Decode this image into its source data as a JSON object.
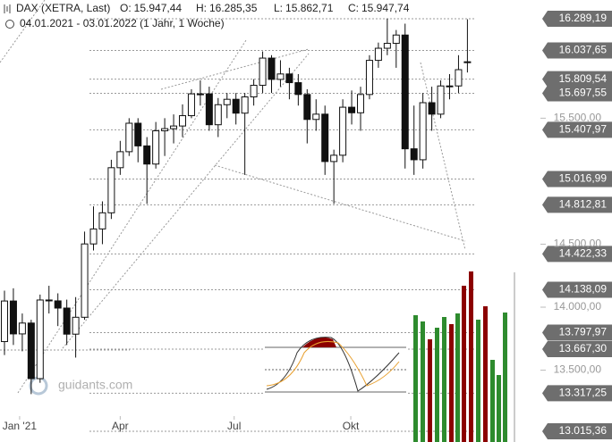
{
  "chart_data": {
    "type": "candlestick",
    "title": "DAX (XETRA, Last)",
    "ohlc_header": [
      {
        "label": "O:",
        "value": "15.947,44"
      },
      {
        "label": "H:",
        "value": "16.285,35"
      },
      {
        "label": "L:",
        "value": "15.862,71"
      },
      {
        "label": "C:",
        "value": "15.947,74"
      }
    ],
    "subtitle": "04.01.2021 - 03.01.2022 (1 Jahr, 1 Woche)",
    "watermark": "guidants.com",
    "open": [
      13727,
      14049,
      13788,
      13874,
      13433,
      14057,
      14050,
      13993,
      13786,
      13920,
      14502,
      14621,
      14749,
      15107,
      15234,
      15460,
      15280,
      15136,
      15400,
      15417,
      15438,
      15520,
      15693,
      15693,
      15448,
      15607,
      15650,
      15540,
      15669,
      15761,
      15977,
      15808,
      15851,
      15782,
      15688,
      15490,
      15532,
      15156,
      15206,
      15587,
      15543,
      15688,
      15959,
      16055,
      16094,
      16160,
      15257,
      15170,
      15623,
      15532,
      15756,
      15756,
      15947.44
    ],
    "high": [
      14131,
      14150,
      13950,
      13900,
      14100,
      14170,
      14110,
      14060,
      14080,
      14600,
      14800,
      14840,
      15170,
      15320,
      15500,
      15500,
      15350,
      15470,
      15500,
      15530,
      15610,
      15730,
      15800,
      15750,
      15660,
      15700,
      15700,
      15700,
      15810,
      16030,
      16000,
      15960,
      15900,
      15850,
      15730,
      15650,
      15600,
      15250,
      15650,
      15720,
      15750,
      16000,
      16100,
      16290,
      16200,
      16250,
      15600,
      15700,
      15750,
      15800,
      15850,
      16000,
      16285.35
    ],
    "low": [
      13620,
      13700,
      13650,
      13310,
      13400,
      13950,
      13850,
      13700,
      13600,
      13900,
      14450,
      14500,
      14700,
      15050,
      15200,
      15150,
      14820,
      15100,
      15200,
      15300,
      15350,
      15500,
      15600,
      15400,
      15350,
      15500,
      15450,
      15050,
      15600,
      15700,
      15700,
      15750,
      15650,
      15600,
      15300,
      15400,
      15050,
      14820,
      15150,
      15450,
      15400,
      15650,
      15900,
      16000,
      15900,
      15100,
      15050,
      15100,
      15400,
      15500,
      15650,
      15700,
      15862.71
    ],
    "close": [
      14049,
      13788,
      13874,
      13433,
      14057,
      14050,
      13993,
      13786,
      13920,
      14502,
      14621,
      14749,
      15107,
      15234,
      15460,
      15280,
      15136,
      15400,
      15417,
      15438,
      15520,
      15693,
      15693,
      15448,
      15607,
      15650,
      15540,
      15669,
      15761,
      15977,
      15808,
      15851,
      15782,
      15688,
      15490,
      15532,
      15156,
      15206,
      15587,
      15543,
      15688,
      15959,
      16055,
      16094,
      16160,
      15257,
      15170,
      15623,
      15532,
      15756,
      15756,
      15885,
      15947.74
    ],
    "xticks": [
      {
        "value": 1.7,
        "label": "Jan '21"
      },
      {
        "value": 13,
        "label": "Apr"
      },
      {
        "value": 25.8,
        "label": "Jul"
      },
      {
        "value": 38.9,
        "label": "Okt"
      }
    ],
    "ylim": [
      12930,
      16438
    ],
    "yticks": [
      {
        "value": 15500,
        "label": "15.500,00"
      },
      {
        "value": 14500,
        "label": "14.500,00"
      },
      {
        "value": 14000,
        "label": "14.000,00"
      },
      {
        "value": 13500,
        "label": "13.500,00"
      }
    ],
    "levels": [
      {
        "value": 16289.19,
        "label": "16.289,19"
      },
      {
        "value": 16037.65,
        "label": "16.037,65"
      },
      {
        "value": 15809.54,
        "label": "15.809,54"
      },
      {
        "value": 15697.55,
        "label": "15.697,55"
      },
      {
        "value": 15407.97,
        "label": "15.407,97"
      },
      {
        "value": 15016.99,
        "label": "15.016,99"
      },
      {
        "value": 14812.81,
        "label": "14.812,81"
      },
      {
        "value": 14422.33,
        "label": "14.422,33"
      },
      {
        "value": 14138.09,
        "label": "14.138,09"
      },
      {
        "value": 13797.97,
        "label": "13.797,97"
      },
      {
        "value": 13667.3,
        "label": "13.667,30"
      },
      {
        "value": 13317.25,
        "label": "13.317,25"
      },
      {
        "value": 13015.36,
        "label": "13.015,36"
      }
    ],
    "up_color": "#ffffff",
    "down_color": "#111111",
    "level_box_color": "#6e6e6e"
  }
}
